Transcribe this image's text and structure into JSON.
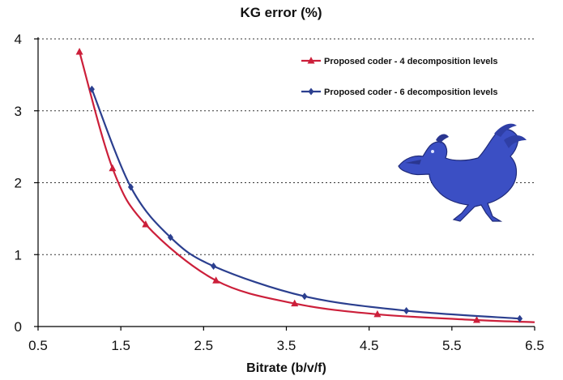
{
  "chart_data": {
    "type": "line",
    "title": "KG error (%)",
    "xlabel": "Bitrate (b/v/f)",
    "ylabel": "",
    "xlim": [
      0.5,
      6.5
    ],
    "ylim": [
      0,
      4
    ],
    "xticks": [
      "0.5",
      "1.5",
      "2.5",
      "3.5",
      "4.5",
      "5.5",
      "6.5"
    ],
    "yticks": [
      "0",
      "1",
      "2",
      "3",
      "4"
    ],
    "grid": "horizontal dotted",
    "legend_position": "top-right",
    "series": [
      {
        "name": "Proposed coder - 4 decomposition levels",
        "color": "#cc1f3a",
        "marker": "triangle",
        "x": [
          1.0,
          1.4,
          1.8,
          2.65,
          3.6,
          4.6,
          5.8,
          6.5
        ],
        "y": [
          3.82,
          2.2,
          1.42,
          0.64,
          0.32,
          0.17,
          0.09,
          0.06
        ],
        "markers_at": [
          0,
          1,
          2,
          3,
          4,
          5,
          6
        ]
      },
      {
        "name": "Proposed coder - 6 decomposition levels",
        "color": "#2b3f8f",
        "marker": "diamond",
        "x": [
          1.15,
          1.62,
          2.1,
          2.62,
          3.72,
          4.95,
          6.32
        ],
        "y": [
          3.3,
          1.94,
          1.24,
          0.84,
          0.42,
          0.22,
          0.11
        ],
        "markers_at": [
          0,
          1,
          2,
          3,
          4,
          5,
          6
        ]
      }
    ]
  },
  "illustration": {
    "icon": "rooster-icon",
    "color": "#3a4bbf"
  }
}
